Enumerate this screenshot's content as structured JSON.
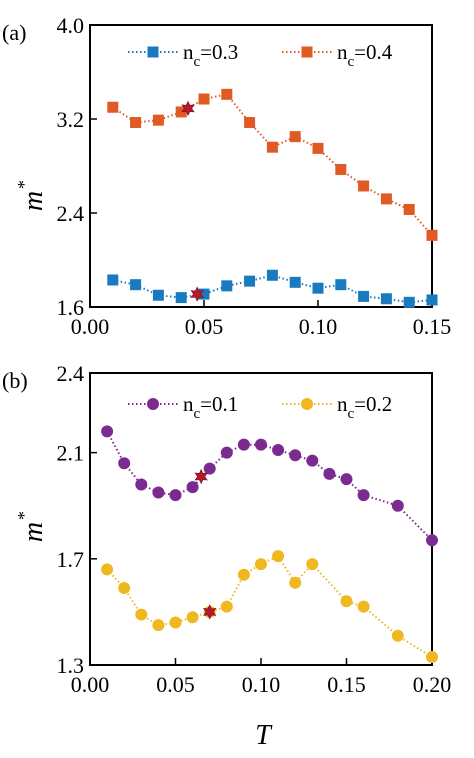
{
  "chart_data": [
    {
      "type": "line",
      "panel_label": "(a)",
      "xlabel": "",
      "ylabel": "m",
      "ylabel_sup": "*",
      "xlim": [
        0,
        0.15
      ],
      "ylim": [
        1.6,
        4.0
      ],
      "xticks": [
        0,
        0.05,
        0.1,
        0.15
      ],
      "xtick_labels": [
        "0.00",
        "0.05",
        "0.10",
        "0.15"
      ],
      "yticks": [
        1.6,
        2.4,
        3.2,
        4.0
      ],
      "ytick_labels": [
        "1.6",
        "2.4",
        "3.2",
        "4.0"
      ],
      "grid": false,
      "legend_position": "top",
      "series": [
        {
          "name": "nc=0.3",
          "legend_main": "n",
          "legend_sub": "c",
          "legend_rest": "=0.3",
          "color": "#1a7abf",
          "marker": "square",
          "x": [
            0.01,
            0.02,
            0.03,
            0.04,
            0.05,
            0.06,
            0.07,
            0.08,
            0.09,
            0.1,
            0.11,
            0.12,
            0.13,
            0.14,
            0.15
          ],
          "y": [
            1.83,
            1.79,
            1.7,
            1.68,
            1.71,
            1.78,
            1.82,
            1.87,
            1.81,
            1.76,
            1.79,
            1.69,
            1.67,
            1.64,
            1.66
          ]
        },
        {
          "name": "nc=0.4",
          "legend_main": "n",
          "legend_sub": "c",
          "legend_rest": "=0.4",
          "color": "#e05a23",
          "marker": "square",
          "x": [
            0.01,
            0.02,
            0.03,
            0.04,
            0.05,
            0.06,
            0.07,
            0.08,
            0.09,
            0.1,
            0.11,
            0.12,
            0.13,
            0.14,
            0.15
          ],
          "y": [
            3.3,
            3.17,
            3.19,
            3.26,
            3.37,
            3.41,
            3.17,
            2.96,
            3.05,
            2.95,
            2.77,
            2.63,
            2.52,
            2.43,
            2.21
          ]
        }
      ],
      "highlights": [
        {
          "x": 0.043,
          "y": 3.29,
          "color": "#b5182b",
          "marker": "star"
        },
        {
          "x": 0.047,
          "y": 1.71,
          "color": "#b5182b",
          "marker": "star"
        }
      ]
    },
    {
      "type": "line",
      "panel_label": "(b)",
      "xlabel": "T",
      "ylabel": "m",
      "ylabel_sup": "*",
      "xlim": [
        0,
        0.2
      ],
      "ylim": [
        1.3,
        2.4
      ],
      "xticks": [
        0,
        0.05,
        0.1,
        0.15,
        0.2
      ],
      "xtick_labels": [
        "0.00",
        "0.05",
        "0.10",
        "0.15",
        "0.20"
      ],
      "yticks": [
        1.3,
        1.7,
        2.1,
        2.4
      ],
      "ytick_labels": [
        "1.3",
        "1.7",
        "2.1",
        "2.4"
      ],
      "grid": false,
      "legend_position": "top",
      "series": [
        {
          "name": "nc=0.1",
          "legend_main": "n",
          "legend_sub": "c",
          "legend_rest": "=0.1",
          "color": "#7b2a90",
          "marker": "circle",
          "x": [
            0.01,
            0.02,
            0.03,
            0.04,
            0.05,
            0.06,
            0.07,
            0.08,
            0.09,
            0.1,
            0.11,
            0.12,
            0.13,
            0.14,
            0.15,
            0.16,
            0.18,
            0.2
          ],
          "y": [
            2.18,
            2.06,
            1.98,
            1.95,
            1.94,
            1.97,
            2.04,
            2.1,
            2.13,
            2.13,
            2.11,
            2.09,
            2.07,
            2.02,
            2.0,
            1.94,
            1.9,
            1.77
          ]
        },
        {
          "name": "nc=0.2",
          "legend_main": "n",
          "legend_sub": "c",
          "legend_rest": "=0.2",
          "color": "#efb820",
          "marker": "circle",
          "x": [
            0.01,
            0.02,
            0.03,
            0.04,
            0.05,
            0.06,
            0.07,
            0.08,
            0.09,
            0.1,
            0.11,
            0.12,
            0.13,
            0.15,
            0.16,
            0.18,
            0.2
          ],
          "y": [
            1.66,
            1.59,
            1.49,
            1.45,
            1.46,
            1.48,
            1.5,
            1.52,
            1.64,
            1.68,
            1.71,
            1.61,
            1.68,
            1.54,
            1.52,
            1.41,
            1.33
          ]
        }
      ],
      "highlights": [
        {
          "x": 0.065,
          "y": 2.01,
          "color": "#b5182b",
          "marker": "star"
        },
        {
          "x": 0.07,
          "y": 1.5,
          "color": "#b5182b",
          "marker": "star"
        }
      ]
    }
  ]
}
